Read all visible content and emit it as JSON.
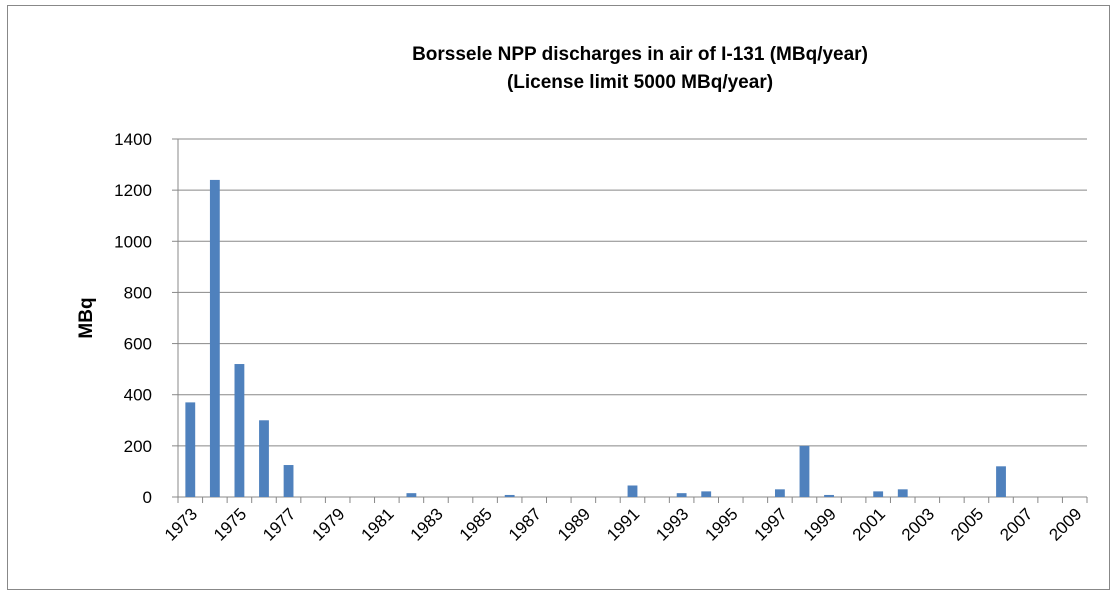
{
  "chart_data": {
    "type": "bar",
    "title": [
      "Borssele NPP discharges in air of I-131 (MBq/year)",
      "(License limit  5000 MBq/year)"
    ],
    "y_label": "MBq",
    "categories": [
      "1973",
      null,
      "1975",
      null,
      "1977",
      null,
      "1979",
      null,
      "1981",
      null,
      "1983",
      null,
      "1985",
      null,
      "1987",
      null,
      "1989",
      null,
      "1991",
      null,
      "1993",
      null,
      "1995",
      null,
      "1997",
      null,
      "1999",
      null,
      "2001",
      null,
      "2003",
      null,
      "2005",
      null,
      "2007",
      null,
      "2009"
    ],
    "values": [
      370,
      1240,
      520,
      300,
      125,
      0,
      0,
      0,
      0,
      15,
      0,
      0,
      0,
      8,
      0,
      0,
      0,
      0,
      45,
      0,
      15,
      22,
      0,
      0,
      30,
      200,
      8,
      0,
      22,
      30,
      0,
      0,
      0,
      120,
      0,
      0,
      0
    ],
    "color": "#4f81bd",
    "ylim": [
      0,
      1400
    ],
    "yticks": [
      0,
      200,
      400,
      600,
      800,
      1000,
      1200,
      1400
    ],
    "grid": true
  }
}
